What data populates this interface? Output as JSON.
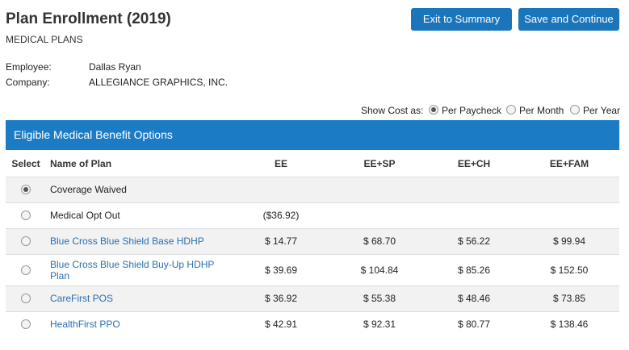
{
  "header": {
    "title": "Plan Enrollment (2019)",
    "subtitle": "MEDICAL PLANS"
  },
  "buttons": [
    "Exit to Summary",
    "Save and Continue"
  ],
  "info": [
    {
      "label": "Employee:",
      "value": "Dallas Ryan"
    },
    {
      "label": "Company:",
      "value": "ALLEGIANCE GRAPHICS, INC."
    }
  ],
  "cost_toggle": {
    "label": "Show Cost as:",
    "options": [
      "Per Paycheck",
      "Per Month",
      "Per Year"
    ],
    "selected": 0
  },
  "table": {
    "title": "Eligible Medical Benefit Options",
    "columns": [
      "Select",
      "Name of Plan",
      "EE",
      "EE+SP",
      "EE+CH",
      "EE+FAM"
    ],
    "selected": 0,
    "rows": [
      {
        "plan": "Coverage Waived",
        "is_link": false,
        "costs": [
          null,
          null,
          null,
          null
        ]
      },
      {
        "plan": "Medical Opt Out",
        "is_link": false,
        "costs": [
          "($36.92)",
          null,
          null,
          null
        ]
      },
      {
        "plan": "Blue Cross Blue Shield Base HDHP",
        "is_link": true,
        "costs": [
          "$ 14.77",
          "$ 68.70",
          "$ 56.22",
          "$ 99.94"
        ]
      },
      {
        "plan": "Blue Cross Blue Shield Buy-Up HDHP Plan",
        "is_link": true,
        "costs": [
          "$ 39.69",
          "$ 104.84",
          "$ 85.26",
          "$ 152.50"
        ]
      },
      {
        "plan": "CareFirst POS",
        "is_link": true,
        "costs": [
          "$ 36.92",
          "$ 55.38",
          "$ 48.46",
          "$ 73.85"
        ]
      },
      {
        "plan": "HealthFirst PPO",
        "is_link": true,
        "costs": [
          "$ 42.91",
          "$ 92.31",
          "$ 80.77",
          "$ 138.46"
        ]
      }
    ]
  }
}
